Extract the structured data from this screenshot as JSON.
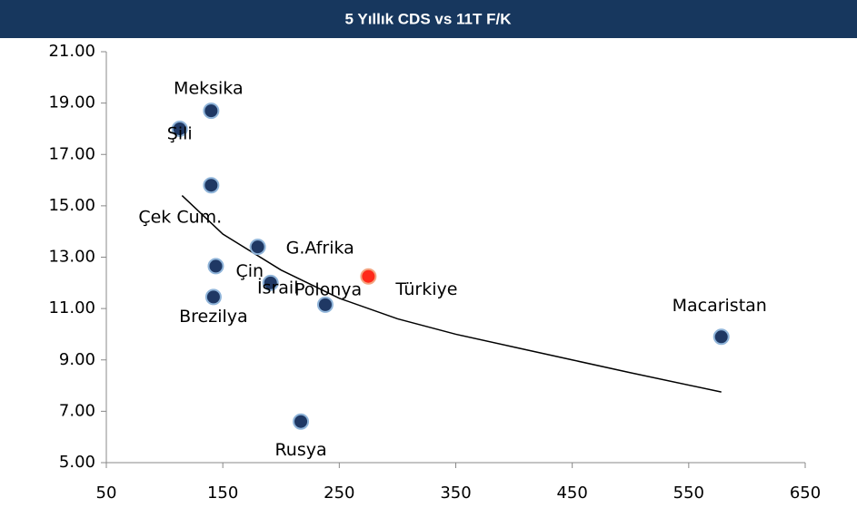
{
  "chart_data": {
    "type": "scatter",
    "title": "5 Yıllık CDS vs 11T F/K",
    "series": [
      {
        "names": [
          "Meksika",
          "Şili",
          "Çek Cum.",
          "G.Afrika",
          "Çin",
          "İsrail",
          "Brezilya",
          "Türkiye",
          "Polonya",
          "Rusya",
          "Macaristan"
        ],
        "x": [
          140,
          113,
          140,
          180,
          144,
          191,
          142,
          275,
          238,
          217,
          578
        ],
        "values": [
          18.7,
          18.0,
          15.8,
          13.4,
          12.65,
          12.0,
          11.45,
          12.25,
          11.15,
          6.6,
          9.9
        ],
        "colors": [
          "#1f3864",
          "#1f3864",
          "#1f3864",
          "#1f3864",
          "#1f3864",
          "#1f3864",
          "#1f3864",
          "#ff2a1a",
          "#1f3864",
          "#1f3864",
          "#1f3864"
        ]
      }
    ],
    "trendline": {
      "x": [
        115,
        150,
        200,
        250,
        300,
        350,
        400,
        450,
        500,
        578
      ],
      "y": [
        15.4,
        13.9,
        12.5,
        11.4,
        10.6,
        10.0,
        9.5,
        9.0,
        8.5,
        7.75
      ],
      "color": "#000000"
    },
    "xlim": [
      50,
      650
    ],
    "xticks": [
      50,
      150,
      250,
      350,
      450,
      550,
      650
    ],
    "ylim": [
      5,
      21
    ],
    "yticks": [
      {
        "value": 5,
        "label": "5.00"
      },
      {
        "value": 7,
        "label": "7.00"
      },
      {
        "value": 9,
        "label": "9.00"
      },
      {
        "value": 11,
        "label": "11.00"
      },
      {
        "value": 13,
        "label": "13.00"
      },
      {
        "value": 15,
        "label": "15.00"
      },
      {
        "value": 17,
        "label": "17.00"
      },
      {
        "value": 19,
        "label": "19.00"
      },
      {
        "value": 21,
        "label": "21.00"
      }
    ]
  }
}
